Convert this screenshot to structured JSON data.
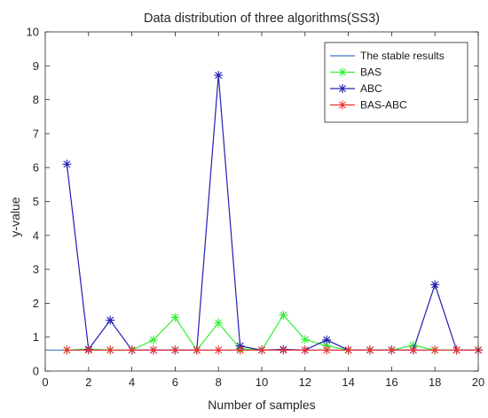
{
  "chart_data": {
    "type": "line",
    "title": "Data distribution of three algorithms(SS3)",
    "xlabel": "Number of samples",
    "ylabel": "y-value",
    "xlim": [
      0,
      20
    ],
    "ylim": [
      0,
      10
    ],
    "xticks": [
      0,
      2,
      4,
      6,
      8,
      10,
      12,
      14,
      16,
      18,
      20
    ],
    "yticks": [
      0,
      1,
      2,
      3,
      4,
      5,
      6,
      7,
      8,
      9,
      10
    ],
    "grid": false,
    "legend_position": "top-right",
    "x": [
      1,
      2,
      3,
      4,
      5,
      6,
      7,
      8,
      9,
      10,
      11,
      12,
      13,
      14,
      15,
      16,
      17,
      18,
      19,
      20
    ],
    "series": [
      {
        "name": "The stable results",
        "color": "#3a78c2",
        "marker": "none",
        "x": [
          0,
          20
        ],
        "values": [
          0.62,
          0.62
        ]
      },
      {
        "name": "BAS",
        "color": "#33ee33",
        "marker": "star",
        "values": [
          0.62,
          0.65,
          0.62,
          0.62,
          0.92,
          1.58,
          0.62,
          1.42,
          0.66,
          0.62,
          1.65,
          0.93,
          0.75,
          0.62,
          0.62,
          0.62,
          0.76,
          0.62,
          0.62,
          0.62
        ]
      },
      {
        "name": "ABC",
        "color": "#2020b4",
        "marker": "star",
        "values": [
          6.1,
          0.64,
          1.5,
          0.62,
          0.62,
          0.62,
          0.62,
          8.72,
          0.74,
          0.62,
          0.64,
          0.62,
          0.92,
          0.62,
          0.62,
          0.62,
          0.62,
          2.55,
          0.62,
          0.62
        ]
      },
      {
        "name": "BAS-ABC",
        "color": "#ee3333",
        "marker": "star",
        "values": [
          0.62,
          0.62,
          0.62,
          0.62,
          0.62,
          0.62,
          0.62,
          0.62,
          0.62,
          0.62,
          0.62,
          0.62,
          0.62,
          0.62,
          0.62,
          0.62,
          0.62,
          0.62,
          0.62,
          0.62
        ]
      }
    ]
  }
}
